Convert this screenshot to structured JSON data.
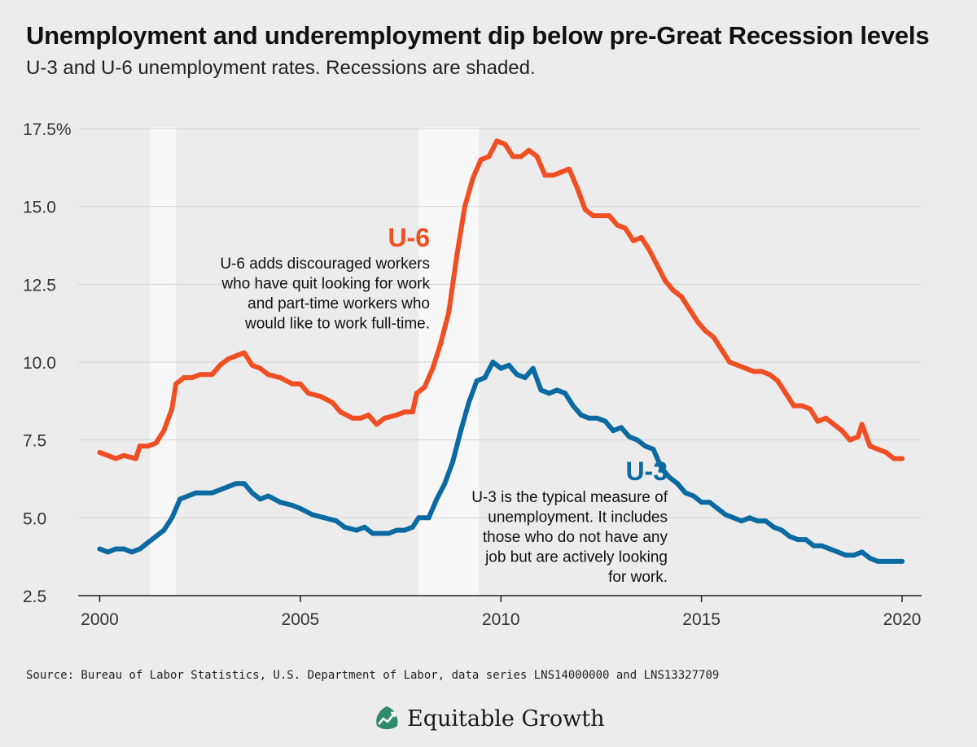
{
  "title": "Unemployment and underemployment dip below pre-Great Recession levels",
  "subtitle": "U-3 and U-6 unemployment rates. Recessions are shaded.",
  "source": "Source: Bureau of Labor Statistics, U.S. Department of Labor, data series LNS14000000 and LNS13327709",
  "brand": "Equitable Growth",
  "colors": {
    "u6": "#f04e23",
    "u3": "#0a6aa1",
    "recession": "#f7f7f7",
    "grid": "#d4d4d4",
    "background": "#ececec"
  },
  "chart_data": {
    "type": "line",
    "ylim": [
      2.5,
      17.5
    ],
    "y_ticks": [
      2.5,
      5.0,
      7.5,
      10.0,
      12.5,
      15.0,
      17.5
    ],
    "y_tick_labels": [
      "2.5",
      "5.0",
      "7.5",
      "10.0",
      "12.5",
      "15.0",
      "17.5%"
    ],
    "xlim": [
      2000,
      2020.25
    ],
    "x_ticks": [
      2000,
      2005,
      2010,
      2015,
      2020
    ],
    "x_tick_labels": [
      "2000",
      "2005",
      "2010",
      "2015",
      "2020"
    ],
    "grid": true,
    "recessions": [
      [
        2001.25,
        2001.9
      ],
      [
        2007.95,
        2009.45
      ]
    ],
    "series": [
      {
        "name": "U-6",
        "color": "#f04e23",
        "points": [
          [
            2000.0,
            7.1
          ],
          [
            2000.2,
            7.0
          ],
          [
            2000.4,
            6.9
          ],
          [
            2000.6,
            7.0
          ],
          [
            2000.9,
            6.9
          ],
          [
            2001.0,
            7.3
          ],
          [
            2001.2,
            7.3
          ],
          [
            2001.4,
            7.4
          ],
          [
            2001.6,
            7.8
          ],
          [
            2001.8,
            8.5
          ],
          [
            2001.9,
            9.3
          ],
          [
            2002.1,
            9.5
          ],
          [
            2002.3,
            9.5
          ],
          [
            2002.5,
            9.6
          ],
          [
            2002.8,
            9.6
          ],
          [
            2003.0,
            9.9
          ],
          [
            2003.2,
            10.1
          ],
          [
            2003.4,
            10.2
          ],
          [
            2003.6,
            10.3
          ],
          [
            2003.8,
            9.9
          ],
          [
            2004.0,
            9.8
          ],
          [
            2004.2,
            9.6
          ],
          [
            2004.5,
            9.5
          ],
          [
            2004.8,
            9.3
          ],
          [
            2005.0,
            9.3
          ],
          [
            2005.2,
            9.0
          ],
          [
            2005.5,
            8.9
          ],
          [
            2005.8,
            8.7
          ],
          [
            2006.0,
            8.4
          ],
          [
            2006.3,
            8.2
          ],
          [
            2006.5,
            8.2
          ],
          [
            2006.7,
            8.3
          ],
          [
            2006.9,
            8.0
          ],
          [
            2007.1,
            8.2
          ],
          [
            2007.4,
            8.3
          ],
          [
            2007.6,
            8.4
          ],
          [
            2007.8,
            8.4
          ],
          [
            2007.9,
            9.0
          ],
          [
            2008.1,
            9.2
          ],
          [
            2008.3,
            9.8
          ],
          [
            2008.5,
            10.6
          ],
          [
            2008.7,
            11.6
          ],
          [
            2008.9,
            13.4
          ],
          [
            2009.1,
            15.0
          ],
          [
            2009.3,
            15.9
          ],
          [
            2009.5,
            16.5
          ],
          [
            2009.7,
            16.6
          ],
          [
            2009.9,
            17.1
          ],
          [
            2010.1,
            17.0
          ],
          [
            2010.3,
            16.6
          ],
          [
            2010.5,
            16.6
          ],
          [
            2010.7,
            16.8
          ],
          [
            2010.9,
            16.6
          ],
          [
            2011.1,
            16.0
          ],
          [
            2011.3,
            16.0
          ],
          [
            2011.5,
            16.1
          ],
          [
            2011.7,
            16.2
          ],
          [
            2011.9,
            15.6
          ],
          [
            2012.1,
            14.9
          ],
          [
            2012.3,
            14.7
          ],
          [
            2012.5,
            14.7
          ],
          [
            2012.7,
            14.7
          ],
          [
            2012.9,
            14.4
          ],
          [
            2013.1,
            14.3
          ],
          [
            2013.3,
            13.9
          ],
          [
            2013.5,
            14.0
          ],
          [
            2013.7,
            13.6
          ],
          [
            2013.9,
            13.1
          ],
          [
            2014.1,
            12.6
          ],
          [
            2014.3,
            12.3
          ],
          [
            2014.5,
            12.1
          ],
          [
            2014.7,
            11.7
          ],
          [
            2014.9,
            11.3
          ],
          [
            2015.1,
            11.0
          ],
          [
            2015.3,
            10.8
          ],
          [
            2015.5,
            10.4
          ],
          [
            2015.7,
            10.0
          ],
          [
            2015.9,
            9.9
          ],
          [
            2016.1,
            9.8
          ],
          [
            2016.3,
            9.7
          ],
          [
            2016.5,
            9.7
          ],
          [
            2016.7,
            9.6
          ],
          [
            2016.9,
            9.4
          ],
          [
            2017.1,
            9.0
          ],
          [
            2017.3,
            8.6
          ],
          [
            2017.5,
            8.6
          ],
          [
            2017.7,
            8.5
          ],
          [
            2017.9,
            8.1
          ],
          [
            2018.1,
            8.2
          ],
          [
            2018.3,
            8.0
          ],
          [
            2018.5,
            7.8
          ],
          [
            2018.7,
            7.5
          ],
          [
            2018.9,
            7.6
          ],
          [
            2019.0,
            8.0
          ],
          [
            2019.2,
            7.3
          ],
          [
            2019.4,
            7.2
          ],
          [
            2019.6,
            7.1
          ],
          [
            2019.8,
            6.9
          ],
          [
            2020.0,
            6.9
          ]
        ]
      },
      {
        "name": "U-3",
        "color": "#0a6aa1",
        "points": [
          [
            2000.0,
            4.0
          ],
          [
            2000.2,
            3.9
          ],
          [
            2000.4,
            4.0
          ],
          [
            2000.6,
            4.0
          ],
          [
            2000.8,
            3.9
          ],
          [
            2001.0,
            4.0
          ],
          [
            2001.2,
            4.2
          ],
          [
            2001.4,
            4.4
          ],
          [
            2001.6,
            4.6
          ],
          [
            2001.8,
            5.0
          ],
          [
            2002.0,
            5.6
          ],
          [
            2002.2,
            5.7
          ],
          [
            2002.4,
            5.8
          ],
          [
            2002.6,
            5.8
          ],
          [
            2002.8,
            5.8
          ],
          [
            2003.0,
            5.9
          ],
          [
            2003.2,
            6.0
          ],
          [
            2003.4,
            6.1
          ],
          [
            2003.6,
            6.1
          ],
          [
            2003.8,
            5.8
          ],
          [
            2004.0,
            5.6
          ],
          [
            2004.2,
            5.7
          ],
          [
            2004.5,
            5.5
          ],
          [
            2004.8,
            5.4
          ],
          [
            2005.0,
            5.3
          ],
          [
            2005.3,
            5.1
          ],
          [
            2005.6,
            5.0
          ],
          [
            2005.9,
            4.9
          ],
          [
            2006.1,
            4.7
          ],
          [
            2006.4,
            4.6
          ],
          [
            2006.6,
            4.7
          ],
          [
            2006.8,
            4.5
          ],
          [
            2007.0,
            4.5
          ],
          [
            2007.2,
            4.5
          ],
          [
            2007.4,
            4.6
          ],
          [
            2007.6,
            4.6
          ],
          [
            2007.8,
            4.7
          ],
          [
            2007.95,
            5.0
          ],
          [
            2008.2,
            5.0
          ],
          [
            2008.4,
            5.6
          ],
          [
            2008.6,
            6.1
          ],
          [
            2008.8,
            6.8
          ],
          [
            2009.0,
            7.8
          ],
          [
            2009.2,
            8.7
          ],
          [
            2009.4,
            9.4
          ],
          [
            2009.6,
            9.5
          ],
          [
            2009.8,
            10.0
          ],
          [
            2010.0,
            9.8
          ],
          [
            2010.2,
            9.9
          ],
          [
            2010.4,
            9.6
          ],
          [
            2010.6,
            9.5
          ],
          [
            2010.8,
            9.8
          ],
          [
            2011.0,
            9.1
          ],
          [
            2011.2,
            9.0
          ],
          [
            2011.4,
            9.1
          ],
          [
            2011.6,
            9.0
          ],
          [
            2011.8,
            8.6
          ],
          [
            2012.0,
            8.3
          ],
          [
            2012.2,
            8.2
          ],
          [
            2012.4,
            8.2
          ],
          [
            2012.6,
            8.1
          ],
          [
            2012.8,
            7.8
          ],
          [
            2013.0,
            7.9
          ],
          [
            2013.2,
            7.6
          ],
          [
            2013.4,
            7.5
          ],
          [
            2013.6,
            7.3
          ],
          [
            2013.8,
            7.2
          ],
          [
            2014.0,
            6.6
          ],
          [
            2014.2,
            6.3
          ],
          [
            2014.4,
            6.1
          ],
          [
            2014.6,
            5.8
          ],
          [
            2014.8,
            5.7
          ],
          [
            2015.0,
            5.5
          ],
          [
            2015.2,
            5.5
          ],
          [
            2015.4,
            5.3
          ],
          [
            2015.6,
            5.1
          ],
          [
            2015.8,
            5.0
          ],
          [
            2016.0,
            4.9
          ],
          [
            2016.2,
            5.0
          ],
          [
            2016.4,
            4.9
          ],
          [
            2016.6,
            4.9
          ],
          [
            2016.8,
            4.7
          ],
          [
            2017.0,
            4.6
          ],
          [
            2017.2,
            4.4
          ],
          [
            2017.4,
            4.3
          ],
          [
            2017.6,
            4.3
          ],
          [
            2017.8,
            4.1
          ],
          [
            2018.0,
            4.1
          ],
          [
            2018.2,
            4.0
          ],
          [
            2018.4,
            3.9
          ],
          [
            2018.6,
            3.8
          ],
          [
            2018.8,
            3.8
          ],
          [
            2019.0,
            3.9
          ],
          [
            2019.2,
            3.7
          ],
          [
            2019.4,
            3.6
          ],
          [
            2019.6,
            3.6
          ],
          [
            2019.8,
            3.6
          ],
          [
            2020.0,
            3.6
          ]
        ]
      }
    ],
    "annotations": [
      {
        "series": "U-6",
        "heading": "U-6",
        "lines": [
          "U-6 adds discouraged workers",
          "who have quit looking for work",
          "and part-time workers who",
          "would like to work full-time."
        ]
      },
      {
        "series": "U-3",
        "heading": "U-3",
        "lines": [
          "U-3 is the typical measure of",
          "unemployment. It includes",
          "those who do not have any",
          "job but are actively looking",
          "for work."
        ]
      }
    ]
  }
}
